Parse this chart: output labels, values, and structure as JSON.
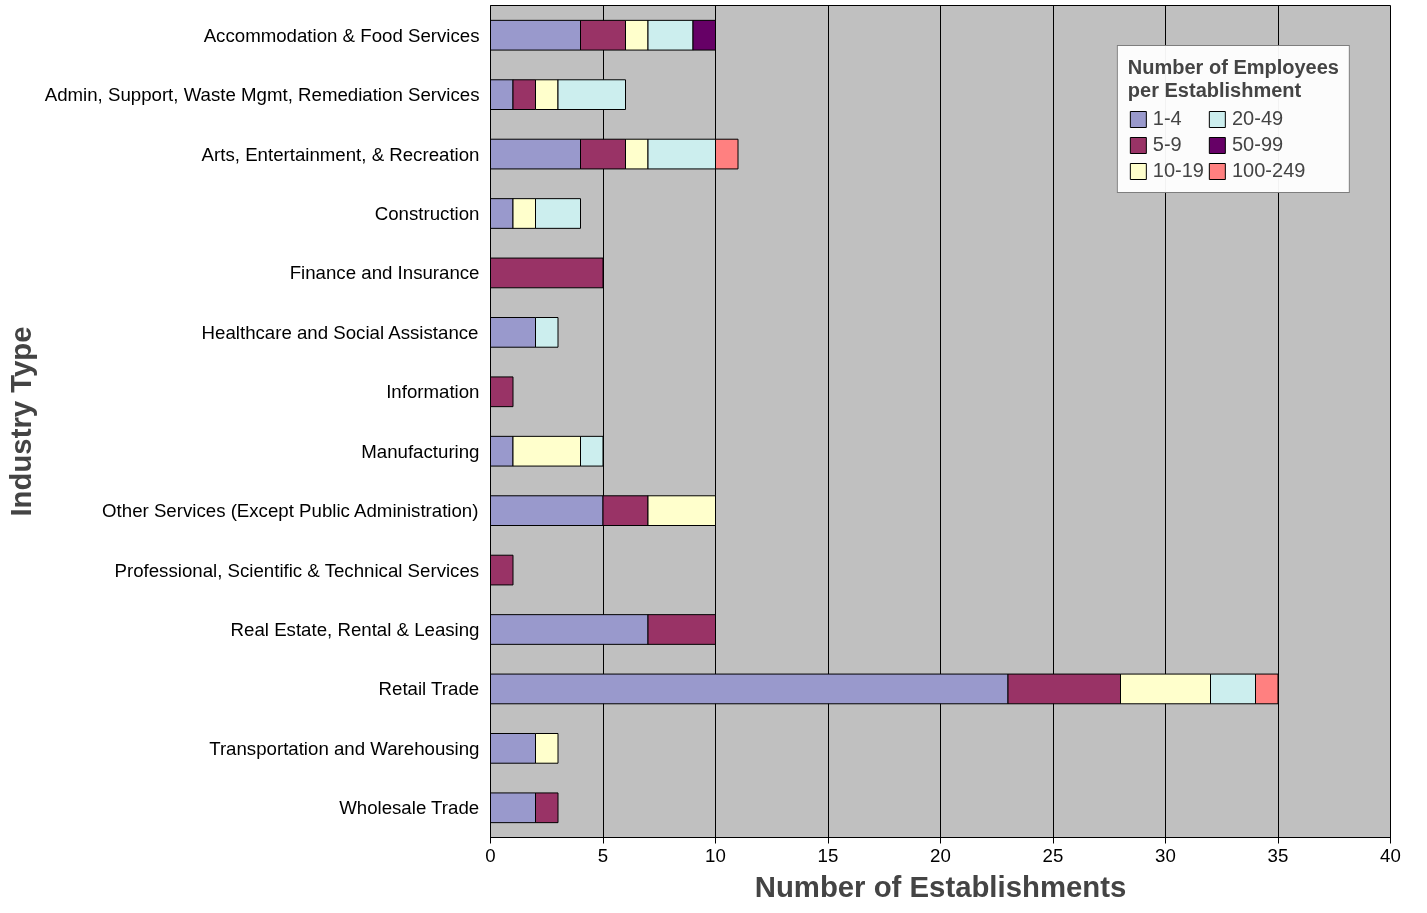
{
  "chart_data": {
    "type": "bar",
    "orientation": "horizontal",
    "stacked": true,
    "xlabel": "Number of Establishments",
    "ylabel": "Industry Type",
    "legend_title": "Number of Employees\nper Establishment",
    "categories": [
      "Accommodation & Food Services",
      "Admin, Support, Waste Mgmt, Remediation Services",
      "Arts, Entertainment, & Recreation",
      "Construction",
      "Finance and Insurance",
      "Healthcare and Social Assistance",
      "Information",
      "Manufacturing",
      "Other Services (Except Public Administration)",
      "Professional, Scientific & Technical Services",
      "Real Estate, Rental & Leasing",
      "Retail Trade",
      "Transportation and Warehousing",
      "Wholesale Trade"
    ],
    "series": [
      {
        "name": "1-4",
        "color": "#9999cc",
        "values": [
          4,
          1,
          4,
          1,
          null,
          2,
          null,
          1,
          5,
          null,
          7,
          23,
          2,
          2
        ]
      },
      {
        "name": "5-9",
        "color": "#993366",
        "values": [
          2,
          1,
          2,
          null,
          5,
          null,
          1,
          null,
          2,
          1,
          3,
          5,
          null,
          1
        ]
      },
      {
        "name": "10-19",
        "color": "#ffffcc",
        "values": [
          1,
          1,
          1,
          1,
          null,
          null,
          null,
          3,
          3,
          null,
          null,
          4,
          1,
          null
        ]
      },
      {
        "name": "20-49",
        "color": "#cceeee",
        "values": [
          2,
          3,
          3,
          2,
          null,
          1,
          null,
          1,
          null,
          null,
          null,
          2,
          null,
          null
        ]
      },
      {
        "name": "50-99",
        "color": "#660066",
        "values": [
          1,
          null,
          null,
          null,
          null,
          null,
          null,
          null,
          null,
          null,
          null,
          null,
          null,
          null
        ]
      },
      {
        "name": "100-249",
        "color": "#ff8080",
        "values": [
          null,
          null,
          1,
          null,
          null,
          null,
          null,
          null,
          null,
          null,
          null,
          1,
          null,
          null
        ]
      }
    ],
    "xlim": [
      0,
      40
    ],
    "xticks": [
      0,
      5,
      10,
      15,
      20,
      25,
      30,
      35,
      40
    ],
    "grid": "x",
    "legend": "top right"
  }
}
